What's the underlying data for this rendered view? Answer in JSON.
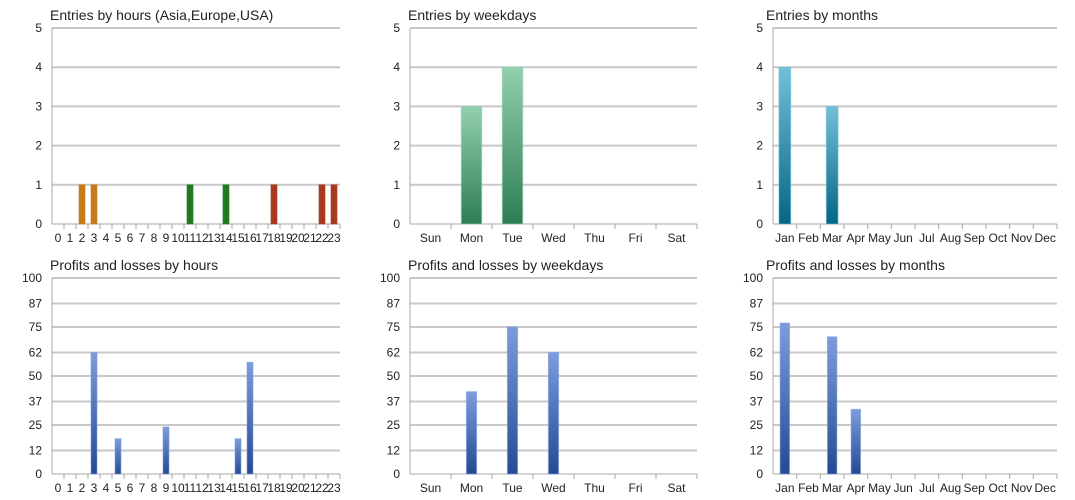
{
  "chart_data": [
    {
      "type": "bar",
      "title": "Entries by hours (Asia,Europe,USA)",
      "categories": [
        "0",
        "1",
        "2",
        "3",
        "4",
        "5",
        "6",
        "7",
        "8",
        "9",
        "10",
        "11",
        "12",
        "13",
        "14",
        "15",
        "16",
        "17",
        "18",
        "19",
        "20",
        "21",
        "22",
        "23"
      ],
      "values": [
        0,
        0,
        1,
        1,
        0,
        0,
        0,
        0,
        0,
        0,
        0,
        1,
        0,
        0,
        1,
        0,
        0,
        0,
        1,
        0,
        0,
        0,
        1,
        1
      ],
      "bar_colors_by_region": {
        "Asia": "#c87a1a",
        "Europe": "#217a22",
        "USA": "#a83a22"
      },
      "bar_region": [
        "Asia",
        "Asia",
        "Asia",
        "Asia",
        "Asia",
        "Asia",
        "Asia",
        "Asia",
        "Europe",
        "Europe",
        "Europe",
        "Europe",
        "Europe",
        "Europe",
        "Europe",
        "Europe",
        "USA",
        "USA",
        "USA",
        "USA",
        "USA",
        "USA",
        "USA",
        "USA"
      ],
      "yticks": [
        "0",
        "1",
        "2",
        "3",
        "4",
        "5"
      ],
      "ylim": [
        0,
        5
      ],
      "grid": true
    },
    {
      "type": "bar",
      "title": "Entries by weekdays",
      "categories": [
        "Sun",
        "Mon",
        "Tue",
        "Wed",
        "Thu",
        "Fri",
        "Sat"
      ],
      "values": [
        0,
        3,
        4,
        0,
        0,
        0,
        0
      ],
      "color_top": "#92d0ae",
      "color_bottom": "#2e7d52",
      "yticks": [
        "0",
        "1",
        "2",
        "3",
        "4",
        "5"
      ],
      "ylim": [
        0,
        5
      ],
      "grid": true
    },
    {
      "type": "bar",
      "title": "Entries by months",
      "categories": [
        "Jan",
        "Feb",
        "Mar",
        "Apr",
        "May",
        "Jun",
        "Jul",
        "Aug",
        "Sep",
        "Oct",
        "Nov",
        "Dec"
      ],
      "values": [
        4,
        0,
        3,
        0,
        0,
        0,
        0,
        0,
        0,
        0,
        0,
        0
      ],
      "color_top": "#72c0d8",
      "color_bottom": "#056585",
      "yticks": [
        "0",
        "1",
        "2",
        "3",
        "4",
        "5"
      ],
      "ylim": [
        0,
        5
      ],
      "grid": true
    },
    {
      "type": "bar",
      "title": "Profits and losses by hours",
      "categories": [
        "0",
        "1",
        "2",
        "3",
        "4",
        "5",
        "6",
        "7",
        "8",
        "9",
        "10",
        "11",
        "12",
        "13",
        "14",
        "15",
        "16",
        "17",
        "18",
        "19",
        "20",
        "21",
        "22",
        "23"
      ],
      "values": [
        0,
        0,
        0,
        62,
        0,
        18,
        0,
        0,
        0,
        24,
        0,
        0,
        0,
        0,
        0,
        18,
        57,
        0,
        0,
        0,
        0,
        0,
        0,
        0
      ],
      "color_top": "#7d9cdc",
      "color_bottom": "#234a92",
      "yticks": [
        "0",
        "12",
        "25",
        "37",
        "50",
        "62",
        "75",
        "87",
        "100"
      ],
      "ylim": [
        0,
        100
      ],
      "grid": true
    },
    {
      "type": "bar",
      "title": "Profits and losses by weekdays",
      "categories": [
        "Sun",
        "Mon",
        "Tue",
        "Wed",
        "Thu",
        "Fri",
        "Sat"
      ],
      "values": [
        0,
        42,
        75,
        62,
        0,
        0,
        0
      ],
      "color_top": "#7d9cdc",
      "color_bottom": "#234a92",
      "yticks": [
        "0",
        "12",
        "25",
        "37",
        "50",
        "62",
        "75",
        "87",
        "100"
      ],
      "ylim": [
        0,
        100
      ],
      "grid": true
    },
    {
      "type": "bar",
      "title": "Profits and losses by months",
      "categories": [
        "Jan",
        "Feb",
        "Mar",
        "Apr",
        "May",
        "Jun",
        "Jul",
        "Aug",
        "Sep",
        "Oct",
        "Nov",
        "Dec"
      ],
      "values": [
        77,
        0,
        70,
        33,
        0,
        0,
        0,
        0,
        0,
        0,
        0,
        0
      ],
      "color_top": "#7d9cdc",
      "color_bottom": "#234a92",
      "yticks": [
        "0",
        "12",
        "25",
        "37",
        "50",
        "62",
        "75",
        "87",
        "100"
      ],
      "ylim": [
        0,
        100
      ],
      "grid": true
    }
  ]
}
